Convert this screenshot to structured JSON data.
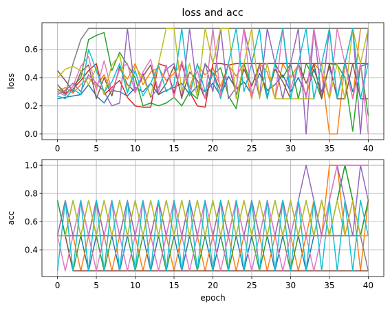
{
  "title": "loss and acc",
  "chart_data": [
    {
      "type": "line",
      "title": "loss and acc",
      "xlabel": "",
      "ylabel": "loss",
      "xlim": [
        -2,
        42
      ],
      "ylim": [
        -0.04,
        0.79
      ],
      "xticks": [
        0,
        5,
        10,
        15,
        20,
        25,
        30,
        35,
        40
      ],
      "yticks": [
        0.0,
        0.2,
        0.4,
        0.6
      ],
      "ytick_labels": [
        "0.0",
        "0.2",
        "0.4",
        "0.6"
      ],
      "grid": true,
      "x": [
        0,
        1,
        2,
        3,
        4,
        5,
        6,
        7,
        8,
        9,
        10,
        11,
        12,
        13,
        14,
        15,
        16,
        17,
        18,
        19,
        20,
        21,
        22,
        23,
        24,
        25,
        26,
        27,
        28,
        29,
        30,
        31,
        32,
        33,
        34,
        35,
        36,
        37,
        38,
        39,
        40
      ],
      "series": [
        {
          "color": "#1f77b4",
          "values": [
            0.25,
            0.26,
            0.27,
            0.28,
            0.35,
            0.27,
            0.22,
            0.31,
            0.3,
            0.27,
            0.33,
            0.3,
            0.36,
            0.28,
            0.31,
            0.33,
            0.36,
            0.28,
            0.34,
            0.3,
            0.36,
            0.27,
            0.41,
            0.32,
            0.37,
            0.28,
            0.43,
            0.31,
            0.35,
            0.42,
            0.3,
            0.4,
            0.28,
            0.46,
            0.3,
            0.48,
            0.26,
            0.51,
            0.3,
            0.48,
            0.5
          ]
        },
        {
          "color": "#ff7f0e",
          "values": [
            0.3,
            0.33,
            0.29,
            0.35,
            0.4,
            0.34,
            0.42,
            0.3,
            0.46,
            0.39,
            0.5,
            0.35,
            0.44,
            0.47,
            0.38,
            0.43,
            0.5,
            0.33,
            0.49,
            0.42,
            0.47,
            0.34,
            0.49,
            0.41,
            0.5,
            0.25,
            0.5,
            0.44,
            0.25,
            0.5,
            0.4,
            0.49,
            0.26,
            0.5,
            0.44,
            0.0,
            0.0,
            0.5,
            0.25,
            0.75,
            0.75
          ]
        },
        {
          "color": "#2ca02c",
          "values": [
            0.32,
            0.28,
            0.34,
            0.4,
            0.67,
            0.7,
            0.72,
            0.45,
            0.58,
            0.49,
            0.4,
            0.2,
            0.22,
            0.2,
            0.22,
            0.26,
            0.2,
            0.3,
            0.25,
            0.5,
            0.42,
            0.47,
            0.27,
            0.18,
            0.5,
            0.34,
            0.49,
            0.25,
            0.5,
            0.4,
            0.5,
            0.25,
            0.5,
            0.4,
            0.25,
            0.5,
            0.49,
            0.4,
            0.02,
            0.5,
            0.13
          ]
        },
        {
          "color": "#d62728",
          "values": [
            0.35,
            0.29,
            0.32,
            0.38,
            0.45,
            0.5,
            0.28,
            0.33,
            0.38,
            0.26,
            0.2,
            0.19,
            0.19,
            0.5,
            0.48,
            0.29,
            0.5,
            0.3,
            0.2,
            0.19,
            0.5,
            0.5,
            0.49,
            0.5,
            0.5,
            0.5,
            0.5,
            0.5,
            0.5,
            0.5,
            0.5,
            0.5,
            0.5,
            0.5,
            0.5,
            0.5,
            0.5,
            0.5,
            0.5,
            0.5,
            0.5
          ]
        },
        {
          "color": "#9467bd",
          "values": [
            0.28,
            0.31,
            0.36,
            0.3,
            0.42,
            0.36,
            0.3,
            0.2,
            0.22,
            0.75,
            0.3,
            0.43,
            0.26,
            0.33,
            0.46,
            0.5,
            0.25,
            0.75,
            0.3,
            0.5,
            0.3,
            0.75,
            0.25,
            0.33,
            0.75,
            0.5,
            0.26,
            0.75,
            0.5,
            0.25,
            0.5,
            0.75,
            0.0,
            0.75,
            0.25,
            0.75,
            0.25,
            0.5,
            0.75,
            0.0,
            0.75
          ]
        },
        {
          "color": "#8c564b",
          "values": [
            0.45,
            0.38,
            0.3,
            0.44,
            0.49,
            0.25,
            0.4,
            0.27,
            0.48,
            0.35,
            0.3,
            0.41,
            0.49,
            0.28,
            0.36,
            0.48,
            0.26,
            0.44,
            0.38,
            0.25,
            0.44,
            0.3,
            0.5,
            0.28,
            0.46,
            0.34,
            0.49,
            0.27,
            0.46,
            0.37,
            0.25,
            0.5,
            0.36,
            0.5,
            0.25,
            0.5,
            0.25,
            0.25,
            0.5,
            0.25,
            0.25
          ]
        },
        {
          "color": "#e377c2",
          "values": [
            0.3,
            0.27,
            0.34,
            0.48,
            0.55,
            0.31,
            0.52,
            0.3,
            0.46,
            0.5,
            0.29,
            0.44,
            0.53,
            0.3,
            0.49,
            0.26,
            0.52,
            0.31,
            0.45,
            0.25,
            0.75,
            0.27,
            0.5,
            0.32,
            0.75,
            0.26,
            0.48,
            0.5,
            0.25,
            0.75,
            0.32,
            0.5,
            0.25,
            0.75,
            0.44,
            0.25,
            0.75,
            0.5,
            0.25,
            0.5,
            0.0
          ]
        },
        {
          "color": "#7f7f7f",
          "values": [
            0.35,
            0.28,
            0.5,
            0.67,
            0.75,
            0.75,
            0.75,
            0.75,
            0.75,
            0.75,
            0.75,
            0.75,
            0.75,
            0.75,
            0.75,
            0.75,
            0.75,
            0.75,
            0.75,
            0.75,
            0.75,
            0.75,
            0.75,
            0.75,
            0.75,
            0.75,
            0.75,
            0.75,
            0.75,
            0.75,
            0.75,
            0.75,
            0.75,
            0.75,
            0.75,
            0.75,
            0.75,
            0.75,
            0.75,
            0.75,
            0.75
          ]
        },
        {
          "color": "#bcbd22",
          "values": [
            0.4,
            0.46,
            0.48,
            0.45,
            0.35,
            0.47,
            0.28,
            0.49,
            0.56,
            0.3,
            0.48,
            0.4,
            0.27,
            0.5,
            0.75,
            0.75,
            0.3,
            0.5,
            0.26,
            0.75,
            0.5,
            0.75,
            0.75,
            0.25,
            0.5,
            0.75,
            0.25,
            0.5,
            0.25,
            0.25,
            0.25,
            0.25,
            0.25,
            0.25,
            0.5,
            0.25,
            0.5,
            0.25,
            0.75,
            0.5,
            0.75
          ]
        },
        {
          "color": "#17becf",
          "values": [
            0.27,
            0.25,
            0.32,
            0.28,
            0.6,
            0.45,
            0.3,
            0.37,
            0.5,
            0.29,
            0.45,
            0.27,
            0.36,
            0.49,
            0.3,
            0.35,
            0.75,
            0.27,
            0.5,
            0.3,
            0.44,
            0.25,
            0.5,
            0.75,
            0.3,
            0.5,
            0.75,
            0.25,
            0.5,
            0.75,
            0.25,
            0.5,
            0.75,
            0.25,
            0.5,
            0.75,
            0.25,
            0.5,
            0.75,
            0.25,
            0.5
          ]
        }
      ]
    },
    {
      "type": "line",
      "title": "",
      "xlabel": "epoch",
      "ylabel": "acc",
      "xlim": [
        -2,
        42
      ],
      "ylim": [
        0.21,
        1.04
      ],
      "xticks": [
        0,
        5,
        10,
        15,
        20,
        25,
        30,
        35,
        40
      ],
      "yticks": [
        0.4,
        0.6,
        0.8,
        1.0
      ],
      "ytick_labels": [
        "0.4",
        "0.6",
        "0.8",
        "1.0"
      ],
      "grid": true,
      "x": [
        0,
        1,
        2,
        3,
        4,
        5,
        6,
        7,
        8,
        9,
        10,
        11,
        12,
        13,
        14,
        15,
        16,
        17,
        18,
        19,
        20,
        21,
        22,
        23,
        24,
        25,
        26,
        27,
        28,
        29,
        30,
        31,
        32,
        33,
        34,
        35,
        36,
        37,
        38,
        39,
        40
      ],
      "series": [
        {
          "color": "#1f77b4",
          "values": [
            0.75,
            0.5,
            0.75,
            0.5,
            0.25,
            0.5,
            0.75,
            0.5,
            0.25,
            0.5,
            0.75,
            0.5,
            0.25,
            0.5,
            0.75,
            0.5,
            0.25,
            0.5,
            0.75,
            0.5,
            0.25,
            0.5,
            0.75,
            0.5,
            0.25,
            0.5,
            0.75,
            0.5,
            0.25,
            0.5,
            0.75,
            0.5,
            0.25,
            0.5,
            0.75,
            0.5,
            0.75,
            1.0,
            0.75,
            0.5,
            0.75
          ]
        },
        {
          "color": "#ff7f0e",
          "values": [
            0.5,
            0.75,
            0.5,
            0.25,
            0.5,
            0.75,
            0.5,
            0.25,
            0.5,
            0.75,
            0.5,
            0.25,
            0.5,
            0.75,
            0.5,
            0.25,
            0.5,
            0.75,
            0.5,
            0.25,
            0.5,
            0.75,
            0.5,
            0.25,
            0.5,
            0.75,
            0.5,
            0.25,
            0.5,
            0.75,
            0.5,
            0.25,
            0.5,
            0.75,
            0.5,
            1.0,
            1.0,
            0.5,
            0.75,
            0.25,
            0.75
          ]
        },
        {
          "color": "#2ca02c",
          "values": [
            0.75,
            0.5,
            0.25,
            0.5,
            0.75,
            0.5,
            0.25,
            0.5,
            0.75,
            0.5,
            0.25,
            0.5,
            0.75,
            0.5,
            0.25,
            0.5,
            0.75,
            0.5,
            0.25,
            0.5,
            0.75,
            0.5,
            0.25,
            0.5,
            0.75,
            0.5,
            0.25,
            0.5,
            0.75,
            0.5,
            0.25,
            0.5,
            0.75,
            0.5,
            0.75,
            0.5,
            0.75,
            1.0,
            0.75,
            0.5,
            0.75
          ]
        },
        {
          "color": "#d62728",
          "values": [
            0.5,
            0.5,
            0.5,
            0.5,
            0.5,
            0.5,
            0.5,
            0.5,
            0.5,
            0.5,
            0.5,
            0.5,
            0.5,
            0.5,
            0.5,
            0.5,
            0.5,
            0.5,
            0.5,
            0.5,
            0.5,
            0.5,
            0.5,
            0.5,
            0.5,
            0.5,
            0.5,
            0.5,
            0.5,
            0.5,
            0.5,
            0.5,
            0.5,
            0.5,
            0.5,
            0.5,
            0.5,
            0.5,
            0.5,
            0.5,
            0.5
          ]
        },
        {
          "color": "#9467bd",
          "values": [
            0.5,
            0.75,
            0.5,
            0.75,
            0.5,
            0.75,
            0.5,
            0.75,
            0.5,
            0.75,
            0.5,
            0.75,
            0.5,
            0.75,
            0.5,
            0.75,
            0.5,
            0.75,
            0.5,
            0.75,
            0.5,
            0.75,
            0.5,
            0.75,
            0.5,
            0.75,
            0.5,
            0.75,
            0.5,
            0.75,
            0.5,
            0.75,
            1.0,
            0.75,
            0.5,
            0.75,
            1.0,
            0.75,
            0.5,
            1.0,
            0.75
          ]
        },
        {
          "color": "#8c564b",
          "values": [
            0.5,
            0.5,
            0.25,
            0.25,
            0.25,
            0.25,
            0.25,
            0.25,
            0.25,
            0.25,
            0.25,
            0.25,
            0.25,
            0.25,
            0.25,
            0.25,
            0.25,
            0.25,
            0.25,
            0.25,
            0.25,
            0.25,
            0.25,
            0.25,
            0.25,
            0.25,
            0.25,
            0.25,
            0.25,
            0.25,
            0.25,
            0.25,
            0.25,
            0.25,
            0.25,
            0.25,
            0.25,
            0.25,
            0.25,
            0.25,
            0.25
          ]
        },
        {
          "color": "#e377c2",
          "values": [
            0.5,
            0.25,
            0.5,
            0.75,
            0.5,
            0.25,
            0.5,
            0.75,
            0.5,
            0.25,
            0.5,
            0.75,
            0.5,
            0.25,
            0.5,
            0.75,
            0.5,
            0.25,
            0.5,
            0.75,
            0.5,
            0.25,
            0.5,
            0.75,
            0.5,
            0.25,
            0.5,
            0.75,
            0.5,
            0.25,
            0.5,
            0.75,
            0.5,
            0.25,
            0.5,
            0.75,
            1.0,
            1.0,
            1.0,
            1.0,
            1.0
          ]
        },
        {
          "color": "#7f7f7f",
          "values": [
            0.5,
            0.5,
            0.5,
            0.5,
            0.5,
            0.5,
            0.5,
            0.5,
            0.5,
            0.5,
            0.5,
            0.5,
            0.5,
            0.5,
            0.5,
            0.5,
            0.5,
            0.5,
            0.5,
            0.5,
            0.5,
            0.5,
            0.5,
            0.5,
            0.5,
            0.5,
            0.5,
            0.5,
            0.5,
            0.5,
            0.5,
            0.5,
            0.5,
            0.5,
            0.5,
            0.5,
            0.5,
            0.5,
            0.5,
            0.5,
            0.25
          ]
        },
        {
          "color": "#bcbd22",
          "values": [
            0.5,
            0.5,
            0.75,
            0.5,
            0.75,
            0.5,
            0.75,
            0.5,
            0.75,
            0.5,
            0.75,
            0.5,
            0.75,
            0.5,
            0.75,
            0.5,
            0.75,
            0.5,
            0.75,
            0.5,
            0.75,
            0.5,
            0.75,
            0.5,
            0.75,
            0.5,
            0.75,
            0.5,
            0.75,
            0.5,
            0.75,
            0.5,
            0.75,
            0.5,
            0.75,
            0.5,
            0.75,
            0.5,
            0.75,
            0.5,
            0.5
          ]
        },
        {
          "color": "#17becf",
          "values": [
            0.25,
            0.75,
            0.25,
            0.75,
            0.25,
            0.75,
            0.25,
            0.75,
            0.25,
            0.75,
            0.25,
            0.75,
            0.25,
            0.75,
            0.25,
            0.75,
            0.25,
            0.75,
            0.25,
            0.75,
            0.25,
            0.75,
            0.25,
            0.75,
            0.25,
            0.75,
            0.25,
            0.75,
            0.25,
            0.75,
            0.25,
            0.75,
            0.25,
            0.75,
            0.25,
            0.75,
            0.25,
            0.75,
            0.25,
            0.75,
            0.5
          ]
        }
      ]
    }
  ]
}
